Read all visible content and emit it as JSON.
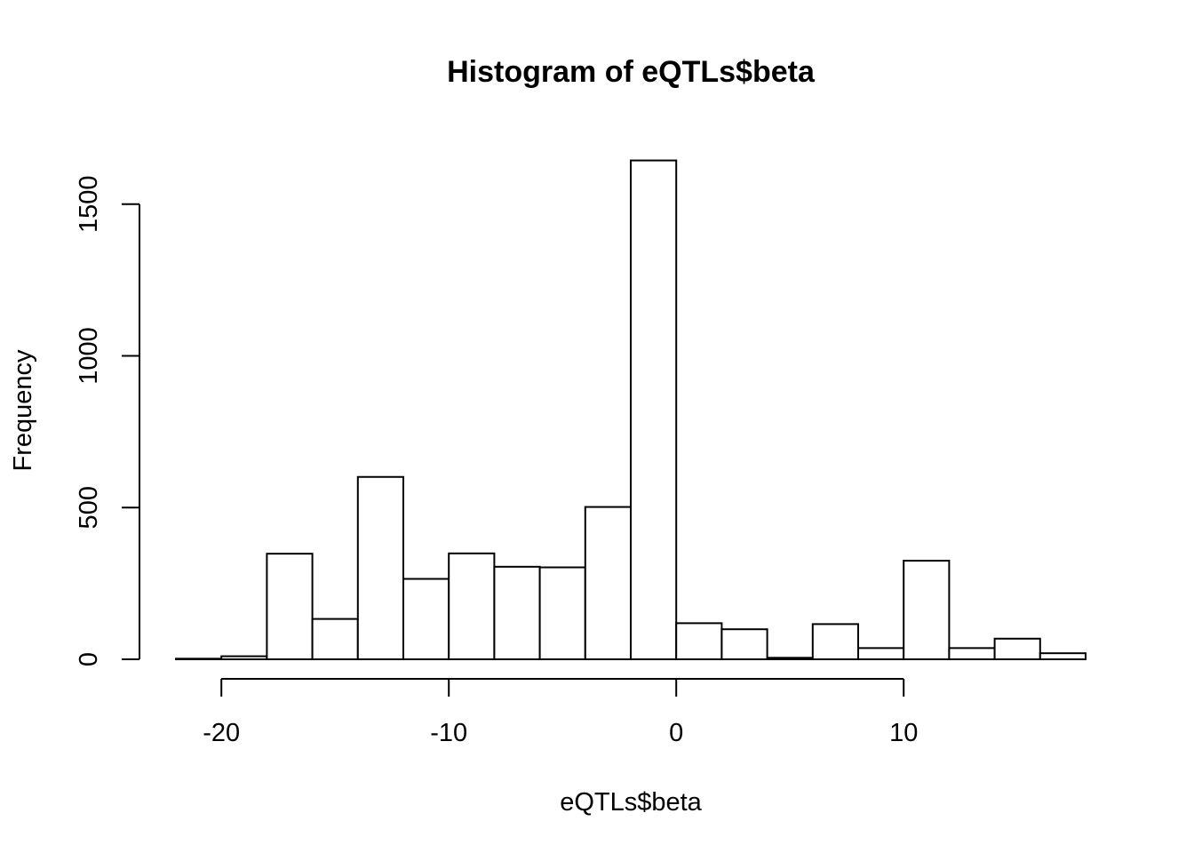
{
  "chart_data": {
    "type": "bar",
    "title": "Histogram of eQTLs$beta",
    "xlabel": "eQTLs$beta",
    "ylabel": "Frequency",
    "bin_edges": [
      -22,
      -20,
      -18,
      -16,
      -14,
      -12,
      -10,
      -8,
      -6,
      -4,
      -2,
      0,
      2,
      4,
      6,
      8,
      10,
      12,
      14,
      16,
      18
    ],
    "values": [
      2,
      10,
      348,
      133,
      601,
      265,
      349,
      305,
      303,
      502,
      1644,
      119,
      99,
      5,
      116,
      37,
      325,
      37,
      68,
      20
    ],
    "xlim": [
      -22,
      18
    ],
    "ylim": [
      0,
      1700
    ],
    "x_ticks": [
      -20,
      -10,
      0,
      10
    ],
    "x_tick_labels": [
      "-20",
      "-10",
      "0",
      "10"
    ],
    "y_ticks": [
      0,
      500,
      1000,
      1500
    ],
    "y_tick_labels": [
      "0",
      "500",
      "1000",
      "1500"
    ],
    "colors": {
      "bar_fill": "#ffffff",
      "bar_stroke": "#000000",
      "background": "#ffffff"
    },
    "grid": false,
    "legend": "none"
  }
}
